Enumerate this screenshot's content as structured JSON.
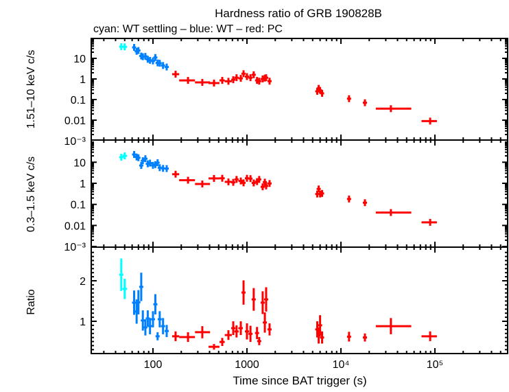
{
  "chart_data": {
    "type": "scatter",
    "title": "Hardness ratio of GRB 190828B",
    "subtitle": "cyan: WT settling – blue: WT – red: PC",
    "xlabel": "Time since BAT trigger (s)",
    "xscale": "log",
    "xlim": [
      22,
      590000
    ],
    "x_ticks": [
      "100",
      "1000",
      "10⁴",
      "10⁵"
    ],
    "x_tick_values": [
      100,
      1000,
      10000,
      100000
    ],
    "colors": {
      "wt_settling": "#00ffff",
      "wt": "#0080ff",
      "pc": "#ff0000"
    },
    "panels": [
      {
        "ylabel": "1.51–10 keV c/s",
        "yscale": "log",
        "ylim": [
          0.001,
          93
        ],
        "y_ticks": [
          "10",
          "1",
          "0.1",
          "0.01",
          "10⁻³"
        ],
        "y_tick_values": [
          10,
          1,
          0.1,
          0.01,
          0.001
        ]
      },
      {
        "ylabel": "0.3–1.5 keV c/s",
        "yscale": "log",
        "ylim": [
          0.001,
          65
        ],
        "y_ticks": [
          "10",
          "1",
          "0.1",
          "0.01",
          "10⁻³"
        ],
        "y_tick_values": [
          10,
          1,
          0.1,
          0.01,
          0.001
        ]
      },
      {
        "ylabel": "Ratio",
        "yscale": "linear",
        "ylim": [
          0.22,
          2.8
        ],
        "y_ticks": [
          "1",
          "2"
        ],
        "y_tick_values": [
          1,
          2
        ]
      }
    ],
    "columns": [
      "mode",
      "t",
      "t_lo",
      "t_hi",
      "hard_rate",
      "soft_rate",
      "ratio",
      "ratio_err"
    ],
    "points": [
      [
        "wt_settling",
        46,
        44,
        48,
        37,
        17.2,
        2.15,
        0.4
      ],
      [
        "wt_settling",
        50,
        48,
        53,
        36,
        20,
        1.8,
        0.25
      ],
      [
        "wt",
        63,
        61,
        65,
        34,
        23.3,
        1.46,
        0.3
      ],
      [
        "wt",
        67,
        65,
        69,
        22,
        17.7,
        1.24,
        0.3
      ],
      [
        "wt",
        70,
        68,
        72,
        24,
        16.3,
        1.47,
        0.3
      ],
      [
        "wt",
        75,
        73,
        77,
        13,
        7.0,
        1.85,
        0.35
      ],
      [
        "wt",
        78,
        76,
        80,
        12,
        11.8,
        1.02,
        0.25
      ],
      [
        "wt",
        83,
        81,
        85,
        12.5,
        14.7,
        0.85,
        0.2
      ],
      [
        "wt",
        88,
        86,
        90,
        9,
        8.4,
        1.07,
        0.2
      ],
      [
        "wt",
        93,
        91,
        95,
        8,
        9.1,
        0.88,
        0.2
      ],
      [
        "wt",
        100,
        97,
        103,
        7.5,
        7.1,
        1.05,
        0.2
      ],
      [
        "wt",
        106,
        103,
        109,
        11,
        7.7,
        1.42,
        0.25
      ],
      [
        "wt",
        112,
        109,
        115,
        6,
        9.5,
        0.63,
        0.1
      ],
      [
        "wt",
        118,
        115,
        121,
        5.8,
        5.5,
        1.05,
        0.2
      ],
      [
        "wt",
        128,
        124,
        132,
        4.5,
        5.1,
        0.88,
        0.2
      ],
      [
        "wt",
        140,
        135,
        145,
        3.8,
        5.0,
        0.76,
        0.15
      ],
      [
        "pc",
        174,
        160,
        190,
        1.7,
        2.7,
        0.63,
        0.12
      ],
      [
        "pc",
        236,
        190,
        280,
        0.85,
        1.4,
        0.61,
        0.12
      ],
      [
        "pc",
        335,
        280,
        405,
        0.68,
        0.93,
        0.73,
        0.15
      ],
      [
        "pc",
        446,
        390,
        510,
        0.63,
        1.7,
        0.37,
        0.07
      ],
      [
        "pc",
        546,
        510,
        580,
        0.85,
        1.73,
        0.49,
        0.1
      ],
      [
        "pc",
        635,
        580,
        690,
        0.77,
        1.17,
        0.66,
        0.12
      ],
      [
        "pc",
        715,
        690,
        740,
        0.92,
        1.11,
        0.83,
        0.17
      ],
      [
        "pc",
        775,
        740,
        810,
        1.15,
        1.53,
        0.75,
        0.15
      ],
      [
        "pc",
        860,
        810,
        900,
        1.07,
        1.29,
        0.83,
        0.17
      ],
      [
        "pc",
        920,
        900,
        950,
        1.8,
        1.05,
        1.71,
        0.3
      ],
      [
        "pc",
        1000,
        960,
        1040,
        1.3,
        1.73,
        0.75,
        0.2
      ],
      [
        "pc",
        1090,
        1050,
        1120,
        1.15,
        1.67,
        0.69,
        0.2
      ],
      [
        "pc",
        1180,
        1130,
        1220,
        1.6,
        1.04,
        1.54,
        0.28
      ],
      [
        "pc",
        1280,
        1240,
        1320,
        0.85,
        1.2,
        0.71,
        0.15
      ],
      [
        "pc",
        1350,
        1320,
        1400,
        0.78,
        1.53,
        0.51,
        0.1
      ],
      [
        "pc",
        1470,
        1420,
        1510,
        1.0,
        0.68,
        1.46,
        0.28
      ],
      [
        "pc",
        1550,
        1520,
        1580,
        1.1,
        1.13,
        0.97,
        0.25
      ],
      [
        "pc",
        1600,
        1580,
        1640,
        1.15,
        0.75,
        1.54,
        0.3
      ],
      [
        "pc",
        1740,
        1660,
        1820,
        0.78,
        0.98,
        0.8,
        0.15
      ],
      [
        "pc",
        5600,
        5500,
        5700,
        0.25,
        0.31,
        0.8,
        0.2
      ],
      [
        "pc",
        5800,
        5700,
        5900,
        0.35,
        0.54,
        0.65,
        0.2
      ],
      [
        "pc",
        6000,
        5900,
        6100,
        0.28,
        0.31,
        0.9,
        0.25
      ],
      [
        "pc",
        6300,
        6200,
        6400,
        0.2,
        0.33,
        0.6,
        0.15
      ],
      [
        "pc",
        12200,
        11800,
        12600,
        0.11,
        0.18,
        0.62,
        0.12
      ],
      [
        "pc",
        18000,
        17400,
        18600,
        0.07,
        0.12,
        0.6,
        0.1
      ],
      [
        "pc",
        34000,
        23500,
        56000,
        0.036,
        0.041,
        0.88,
        0.2
      ],
      [
        "pc",
        89000,
        72000,
        105000,
        0.009,
        0.014,
        0.63,
        0.12
      ]
    ]
  }
}
